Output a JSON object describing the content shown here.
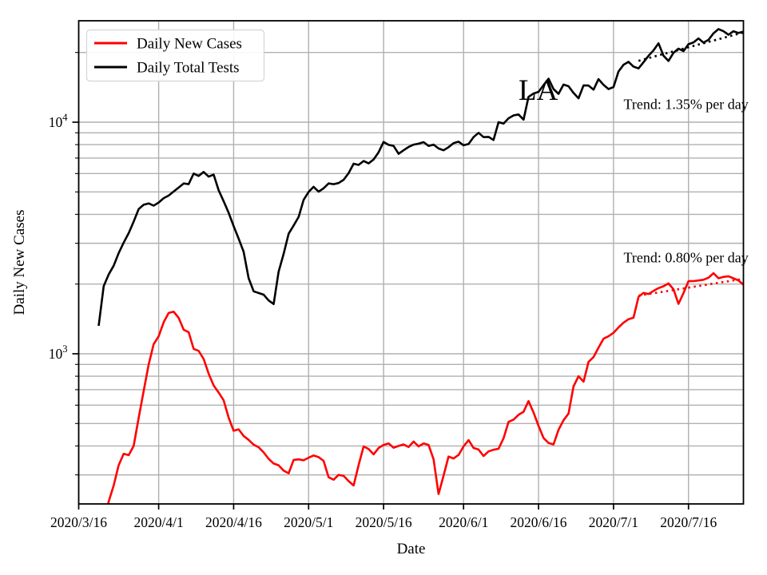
{
  "figure": {
    "annotation_la": "LA",
    "trend_tests_label": "Trend: 1.35% per day",
    "trend_cases_label": "Trend: 0.80% per day"
  },
  "legend": {
    "items": [
      {
        "label": "Daily New Cases",
        "color": "#ff0000"
      },
      {
        "label": "Daily Total Tests",
        "color": "#000000"
      }
    ]
  },
  "axes": {
    "x_label": "Date",
    "y_label": "Daily New Cases",
    "x_tick_labels": [
      "2020/3/16",
      "2020/4/1",
      "2020/4/16",
      "2020/5/1",
      "2020/5/16",
      "2020/6/1",
      "2020/6/16",
      "2020/7/1",
      "2020/7/16"
    ],
    "y_ticks": [
      {
        "value": 1000,
        "mantissa": "10",
        "exponent": "3"
      },
      {
        "value": 10000,
        "mantissa": "10",
        "exponent": "4"
      }
    ]
  },
  "colors": {
    "cases": "#ff0000",
    "tests": "#000000",
    "grid": "#b0b0b0",
    "legend_border": "#d5d5d5"
  },
  "chart_data": {
    "type": "line",
    "title": "",
    "xlabel": "Date",
    "ylabel": "Daily New Cases",
    "y_scale": "log",
    "ylim": [
      224,
      27500
    ],
    "xlim_days": [
      0,
      133
    ],
    "x_unit": "days since 2020/3/16",
    "grid": true,
    "legend_position": "upper left",
    "x_tick_days": [
      0,
      16,
      31,
      46,
      61,
      77,
      92,
      107,
      122
    ],
    "y_major_gridlines": [
      1000,
      10000
    ],
    "y_minor_gridlines": [
      300,
      400,
      500,
      600,
      700,
      800,
      900,
      2000,
      3000,
      4000,
      5000,
      6000,
      7000,
      8000,
      9000,
      20000
    ],
    "series": [
      {
        "name": "Daily New Cases",
        "color": "#ff0000",
        "style": "solid",
        "start_day": 3,
        "start_date": "2020/3/19",
        "values": [
          120,
          150,
          185,
          230,
          270,
          330,
          370,
          365,
          400,
          530,
          690,
          900,
          1100,
          1190,
          1370,
          1500,
          1520,
          1430,
          1270,
          1240,
          1050,
          1030,
          950,
          820,
          730,
          680,
          630,
          530,
          465,
          472,
          442,
          425,
          405,
          395,
          375,
          352,
          336,
          330,
          313,
          305,
          348,
          350,
          347,
          356,
          364,
          358,
          345,
          293,
          286,
          300,
          297,
          282,
          270,
          330,
          398,
          388,
          368,
          392,
          404,
          410,
          393,
          400,
          406,
          396,
          418,
          398,
          410,
          404,
          350,
          248,
          298,
          360,
          353,
          366,
          398,
          424,
          392,
          386,
          362,
          379,
          385,
          389,
          432,
          508,
          520,
          545,
          562,
          625,
          558,
          488,
          433,
          412,
          406,
          470,
          516,
          552,
          722,
          800,
          758,
          922,
          968,
          1062,
          1162,
          1190,
          1232,
          1300,
          1362,
          1410,
          1432,
          1760,
          1832,
          1812,
          1868,
          1920,
          1958,
          2012,
          1900,
          1642,
          1830,
          2058,
          2060,
          2072,
          2088,
          2132,
          2228,
          2120,
          2148,
          2162,
          2118,
          2072,
          1988
        ]
      },
      {
        "name": "Daily Total Tests",
        "color": "#000000",
        "style": "solid",
        "start_day": 4,
        "start_date": "2020/3/20",
        "values": [
          1320,
          1960,
          2200,
          2400,
          2720,
          3020,
          3320,
          3720,
          4220,
          4400,
          4460,
          4360,
          4500,
          4700,
          4820,
          5020,
          5220,
          5440,
          5400,
          6000,
          5860,
          6100,
          5820,
          5940,
          5080,
          4560,
          4060,
          3560,
          3140,
          2760,
          2120,
          1860,
          1830,
          1800,
          1700,
          1640,
          2260,
          2700,
          3300,
          3580,
          3900,
          4620,
          5000,
          5260,
          5010,
          5180,
          5440,
          5400,
          5460,
          5640,
          6020,
          6620,
          6540,
          6800,
          6640,
          6900,
          7420,
          8220,
          7980,
          7900,
          7300,
          7560,
          7820,
          8000,
          8080,
          8200,
          7900,
          8000,
          7700,
          7560,
          7800,
          8120,
          8240,
          7950,
          8050,
          8620,
          9000,
          8620,
          8640,
          8380,
          10000,
          9860,
          10400,
          10700,
          10800,
          10260,
          12860,
          13300,
          13520,
          14460,
          15420,
          13900,
          13260,
          14540,
          14300,
          13380,
          12680,
          14420,
          14400,
          13820,
          15340,
          14500,
          13900,
          14180,
          16540,
          17700,
          18220,
          17380,
          17060,
          18140,
          19340,
          20420,
          21920,
          19360,
          18380,
          19940,
          20780,
          20280,
          21700,
          22100,
          23000,
          22060,
          22680,
          24200,
          25240,
          24700,
          23860,
          24700,
          24280,
          24600
        ]
      },
      {
        "name": "Daily New Cases trend (0.80% per day)",
        "color": "#ff0000",
        "style": "dotted",
        "start_day": 112,
        "start_date": "2020/7/6",
        "values": [
          1783,
          1797,
          1811,
          1826,
          1840,
          1855,
          1870,
          1885,
          1900,
          1915,
          1930,
          1946,
          1961,
          1977,
          1993,
          2009,
          2025,
          2041,
          2057,
          2074,
          2090,
          2107
        ]
      },
      {
        "name": "Daily Total Tests trend (1.35% per day)",
        "color": "#000000",
        "style": "dotted",
        "start_day": 112,
        "start_date": "2020/7/6",
        "values": [
          18400,
          18660,
          18910,
          19170,
          19430,
          19690,
          19950,
          20230,
          20500,
          20780,
          21060,
          21340,
          21630,
          21920,
          22220,
          22520,
          22820,
          23130,
          23440,
          23760,
          24080,
          24400
        ]
      }
    ],
    "annotations": [
      {
        "text": "LA",
        "x_day": 88,
        "value": 12500,
        "font_size": 37
      },
      {
        "text": "Trend: 1.35% per day",
        "x_day": 134,
        "value": 11400,
        "align": "right",
        "font_size": 18
      },
      {
        "text": "Trend: 0.80% per day",
        "x_day": 134,
        "value": 2480,
        "align": "right",
        "font_size": 18
      }
    ]
  }
}
